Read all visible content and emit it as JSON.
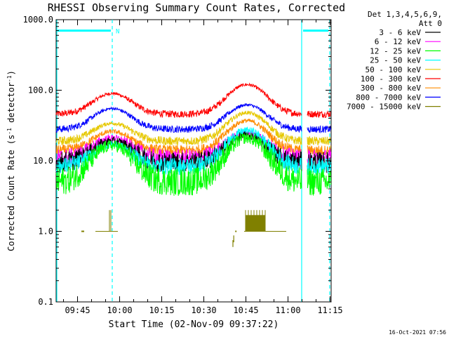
{
  "chart_data": {
    "type": "line",
    "title": "RHESSI Observing Summary Count Rates, Corrected",
    "xlabel": "Start Time (02-Nov-09 09:37:22)",
    "ylabel_parts": [
      "Corrected Count Rate (s",
      "-1",
      " detector",
      "-1",
      ")"
    ],
    "ylabel": "Corrected Count Rate (s-1 detector-1)",
    "y_scale": "log",
    "ylim": [
      0.1,
      1000
    ],
    "xlim_minutes": [
      0,
      98
    ],
    "x_ticks": [
      {
        "minute": 7.63,
        "label": "09:45"
      },
      {
        "minute": 22.63,
        "label": "10:00"
      },
      {
        "minute": 37.63,
        "label": "10:15"
      },
      {
        "minute": 52.63,
        "label": "10:30"
      },
      {
        "minute": 67.63,
        "label": "10:45"
      },
      {
        "minute": 82.63,
        "label": "11:00"
      },
      {
        "minute": 97.63,
        "label": "11:15"
      }
    ],
    "y_ticks": [
      {
        "value": 1000,
        "label": "1000.0"
      },
      {
        "value": 100,
        "label": "100.0"
      },
      {
        "value": 10,
        "label": "10.0"
      },
      {
        "value": 1,
        "label": "1.0"
      },
      {
        "value": 0.1,
        "label": "0.1"
      }
    ],
    "legend_header": [
      "Det 1,3,4,5,6,9,",
      "Att 0"
    ],
    "legend_position": "right",
    "series": [
      {
        "name": "3 - 6 keV",
        "color": "#000000",
        "base": 9.5,
        "peak1": 19,
        "peak2": 23,
        "noise": 0.06
      },
      {
        "name": "6 - 12 keV",
        "color": "#ff00ff",
        "base": 11,
        "peak1": 21,
        "peak2": 25,
        "noise": 0.05
      },
      {
        "name": "12 - 25 keV",
        "color": "#00ff00",
        "base": 5,
        "peak1": 16.5,
        "peak2": 21,
        "noise": 0.08
      },
      {
        "name": "25 - 50 keV",
        "color": "#00ffff",
        "base": 8.3,
        "peak1": 17,
        "peak2": 27,
        "noise": 0.05
      },
      {
        "name": "50 - 100 keV",
        "color": "#e6c800",
        "base": 19,
        "peak1": 34,
        "peak2": 48,
        "noise": 0.025
      },
      {
        "name": "100 - 300 keV",
        "color": "#ff0000",
        "base": 46,
        "peak1": 90,
        "peak2": 120,
        "noise": 0.02
      },
      {
        "name": "300 - 800 keV",
        "color": "#ff8c00",
        "base": 14,
        "peak1": 26,
        "peak2": 37,
        "noise": 0.03
      },
      {
        "name": "800 - 7000 keV",
        "color": "#0000ff",
        "base": 28,
        "peak1": 55,
        "peak2": 62,
        "noise": 0.02
      },
      {
        "name": "7000 - 15000 keV",
        "color": "#808000",
        "base": 1.0,
        "peak1": 2,
        "peak2": 2,
        "noise": 0
      }
    ],
    "peaks_minutes": [
      20,
      68
    ],
    "peak_width_minutes": 8.5,
    "data_windows_minutes": [
      [
        0,
        87.5
      ],
      [
        89.5,
        98
      ]
    ],
    "vertical_markers": [
      {
        "minute": 0,
        "style": "solid",
        "color": "#00ffff"
      },
      {
        "minute": 20,
        "style": "dashed",
        "color": "#00ffff"
      },
      {
        "minute": 87.5,
        "style": "solid",
        "color": "#00ffff"
      },
      {
        "minute": 97.5,
        "style": "dashed",
        "color": "#00ffff"
      }
    ],
    "night_bars": [
      {
        "from_minute": 0,
        "to_minute": 20,
        "label": "N"
      },
      {
        "from_minute": 87.5,
        "to_minute": 97.5,
        "label": ""
      }
    ],
    "night_bar_value": 700,
    "attenuator_state": {
      "value": 1.0,
      "segments_minutes": [
        [
          14,
          22
        ],
        [
          67,
          82
        ]
      ],
      "spikes_minutes": [
        [
          19,
          2.0
        ],
        [
          19.5,
          2.0
        ],
        [
          67.5,
          2.0
        ],
        [
          68.5,
          2.0
        ],
        [
          69.5,
          2.0
        ],
        [
          70.5,
          2.0
        ],
        [
          71.5,
          2.0
        ],
        [
          72.5,
          2.0
        ],
        [
          73.5,
          2.0
        ],
        [
          74.5,
          2.0
        ]
      ],
      "low_points_minutes": [
        [
          63,
          0.6
        ],
        [
          63.3,
          0.7
        ]
      ]
    },
    "timestamp": "16-Oct-2021 07:56"
  }
}
